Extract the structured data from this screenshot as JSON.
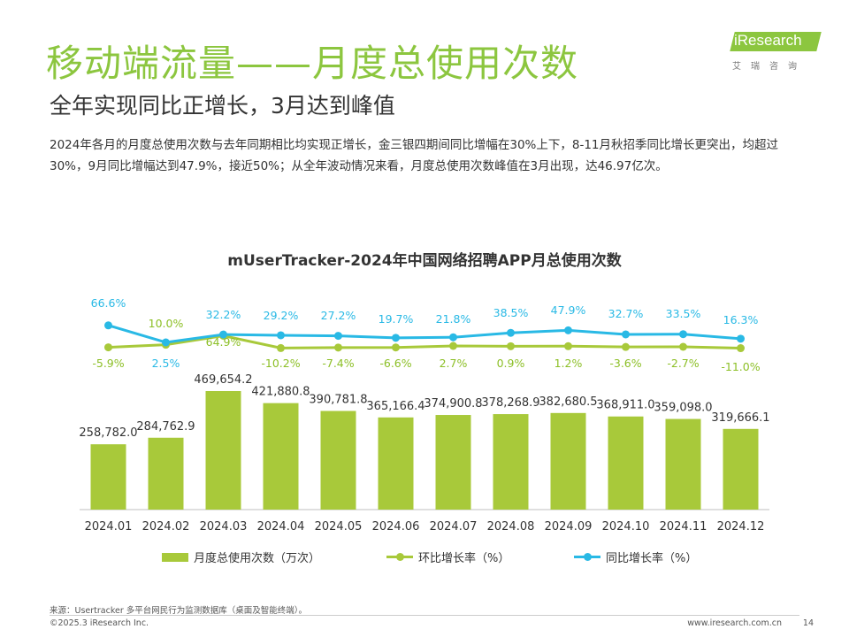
{
  "header": {
    "title": "移动端流量——月度总使用次数",
    "subtitle": "全年实现同比正增长，3月达到峰值",
    "description": "2024年各月的月度总使用次数与去年同期相比均实现正增长，金三银四期间同比增幅在30%上下，8-11月秋招季同比增长更突出，均超过30%，9月同比增幅达到47.9%，接近50%；从全年波动情况来看，月度总使用次数峰值在3月出现，达46.97亿次。"
  },
  "logo": {
    "brand": "iResearch",
    "tagline": "艾瑞咨询"
  },
  "chart_data": {
    "type": "bar",
    "title": "mUserTracker-2024年中国网络招聘APP月总使用次数",
    "categories": [
      "2024.01",
      "2024.02",
      "2024.03",
      "2024.04",
      "2024.05",
      "2024.06",
      "2024.07",
      "2024.08",
      "2024.09",
      "2024.10",
      "2024.11",
      "2024.12"
    ],
    "series": [
      {
        "name": "月度总使用次数（万次）",
        "type": "bar",
        "color": "#a8c93a",
        "values": [
          258782.0,
          284762.9,
          469654.2,
          421880.8,
          390781.8,
          365166.4,
          374900.8,
          378268.9,
          382680.5,
          368911.0,
          359098.0,
          319666.1
        ],
        "labels": [
          "258,782.0",
          "284,762.9",
          "469,654.2",
          "421,880.8",
          "390,781.8",
          "365,166.4",
          "374,900.8",
          "378,268.9",
          "382,680.5",
          "368,911.0",
          "359,098.0",
          "319,666.1"
        ]
      },
      {
        "name": "环比增长率（%）",
        "type": "line",
        "color": "#a8c93a",
        "values": [
          -5.9,
          10.0,
          64.9,
          -10.2,
          -7.4,
          -6.6,
          2.7,
          0.9,
          1.2,
          -3.6,
          -2.7,
          -11.0
        ],
        "labels": [
          "-5.9%",
          "10.0%",
          "64.9%",
          "-10.2%",
          "-7.4%",
          "-6.6%",
          "2.7%",
          "0.9%",
          "1.2%",
          "-3.6%",
          "-2.7%",
          "-11.0%"
        ]
      },
      {
        "name": "同比增长率（%）",
        "type": "line",
        "color": "#29b9e5",
        "values": [
          66.6,
          2.5,
          32.2,
          29.2,
          27.2,
          19.7,
          21.8,
          38.5,
          47.9,
          32.7,
          33.5,
          16.3
        ],
        "labels": [
          "66.6%",
          "2.5%",
          "32.2%",
          "29.2%",
          "27.2%",
          "19.7%",
          "21.8%",
          "38.5%",
          "47.9%",
          "32.7%",
          "33.5%",
          "16.3%"
        ]
      }
    ],
    "legend_position": "bottom",
    "grid": false
  },
  "footer": {
    "source": "来源：Usertracker 多平台网民行为监测数据库（桌面及智能终端）。",
    "copyright": "©2025.3 iResearch Inc.",
    "website": "www.iresearch.com.cn",
    "page": "14"
  }
}
